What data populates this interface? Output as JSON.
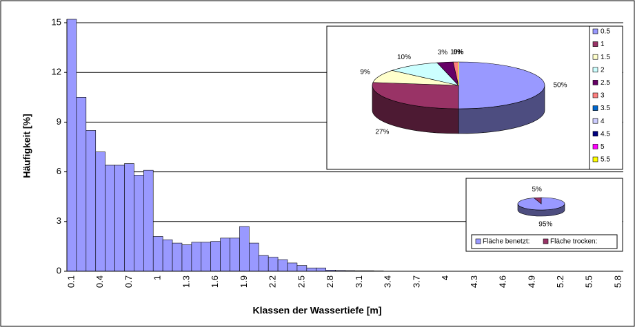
{
  "chart_data": [
    {
      "type": "bar",
      "x_label": "Klassen der Wassertiefe [m]",
      "y_label": "Häufigkeit [%]",
      "categories": [
        "0.1",
        null,
        null,
        "0.4",
        null,
        null,
        "0.7",
        null,
        null,
        "1",
        null,
        null,
        "1.3",
        null,
        null,
        "1.6",
        null,
        null,
        "1.9",
        null,
        null,
        "2.2",
        null,
        null,
        "2.5",
        null,
        null,
        "2.8",
        null,
        null,
        "3.1",
        null,
        null,
        "3.4",
        null,
        null,
        "3.7",
        null,
        null,
        "4",
        null,
        null,
        "4.3",
        null,
        null,
        "4.6",
        null,
        null,
        "4.9",
        null,
        null,
        "5.2",
        null,
        null,
        "5.5",
        null,
        null,
        "5.8"
      ],
      "values": [
        15.3,
        10.5,
        8.5,
        7.2,
        6.4,
        6.4,
        6.5,
        5.8,
        6.1,
        2.1,
        1.9,
        1.7,
        1.6,
        1.75,
        1.75,
        1.8,
        2.0,
        2.0,
        2.7,
        1.7,
        0.95,
        0.85,
        0.7,
        0.5,
        0.35,
        0.2,
        0.2,
        0.07,
        0.05,
        0.04,
        0.03,
        0.03,
        0.02,
        0,
        0,
        0,
        0,
        0,
        0,
        0,
        0,
        0,
        0,
        0,
        0,
        0,
        0,
        0,
        0,
        0,
        0,
        0,
        0,
        0,
        0,
        0,
        0,
        0
      ],
      "color": "#9999ff",
      "ylim": [
        0,
        15
      ],
      "yticks": [
        0,
        3,
        6,
        9,
        12,
        15
      ],
      "grid": true
    },
    {
      "type": "pie",
      "categories": [
        "0.5",
        "1",
        "1.5",
        "2",
        "2.5",
        "3",
        "3.5",
        "4",
        "4.5",
        "5",
        "5.5"
      ],
      "values": [
        50,
        27,
        9,
        10,
        3,
        1,
        0,
        0,
        0,
        0,
        0
      ],
      "value_labels": [
        "50%",
        "27%",
        "9%",
        "10%",
        "3%",
        "1%",
        "0%",
        "0%",
        "0%",
        "0%",
        "0%"
      ],
      "colors": [
        "#9999ff",
        "#993366",
        "#ffffcc",
        "#ccffff",
        "#660066",
        "#ff8080",
        "#0066cc",
        "#ccccff",
        "#000080",
        "#ff00ff",
        "#ffff00"
      ]
    },
    {
      "type": "pie",
      "categories": [
        "Fläche benetzt:",
        "Fläche trocken:"
      ],
      "values": [
        95,
        5
      ],
      "value_labels": [
        "95%",
        "5%"
      ],
      "colors": [
        "#9999ff",
        "#993366"
      ]
    }
  ]
}
